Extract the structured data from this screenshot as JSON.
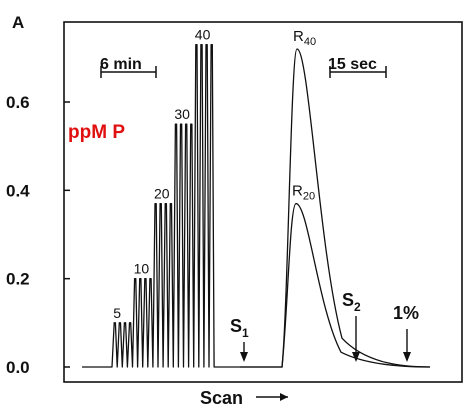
{
  "chart_data": {
    "type": "line",
    "y_axis_label": "A",
    "x_axis_label": "Scan",
    "ylim": [
      0,
      0.8
    ],
    "y_ticks": [
      {
        "value": 0.0,
        "label": "0.0"
      },
      {
        "value": 0.2,
        "label": "0.2"
      },
      {
        "value": 0.4,
        "label": "0.4"
      },
      {
        "value": 0.6,
        "label": "0.6"
      }
    ],
    "overlay_label": "ppM P",
    "overlay_color": "#e01010",
    "left_scale_bar": "6 min",
    "right_scale_bar": "15 sec",
    "standard_groups": [
      {
        "label": "5",
        "value": 0.1,
        "peaks": 4
      },
      {
        "label": "10",
        "value": 0.2,
        "peaks": 4
      },
      {
        "label": "20",
        "value": 0.37,
        "peaks": 4
      },
      {
        "label": "30",
        "value": 0.55,
        "peaks": 4
      },
      {
        "label": "40",
        "value": 0.73,
        "peaks": 4
      }
    ],
    "scan_peaks": [
      {
        "label": "R40",
        "base": "R",
        "sub": "40",
        "peak_value": 0.72
      },
      {
        "label": "R20",
        "base": "R",
        "sub": "20",
        "peak_value": 0.37
      }
    ],
    "markers": [
      {
        "label": "S1",
        "base": "S",
        "sub": "1"
      },
      {
        "label": "S2",
        "base": "S",
        "sub": "2"
      },
      {
        "label": "1%",
        "base": "1%",
        "sub": ""
      }
    ]
  }
}
